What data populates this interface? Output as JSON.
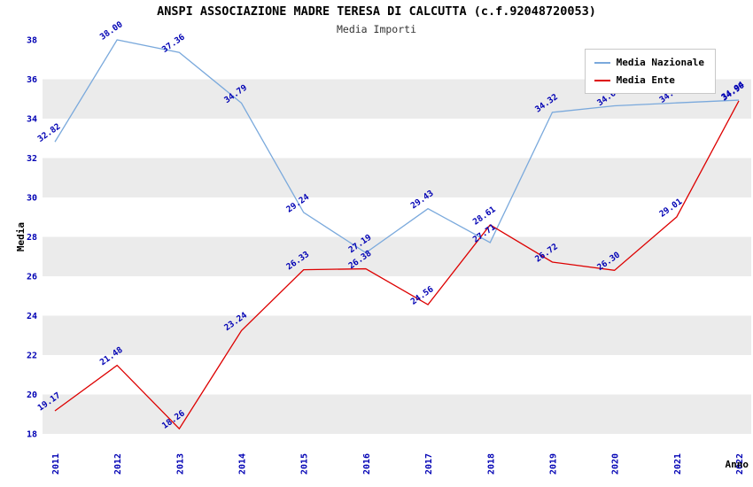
{
  "chart_data": {
    "type": "line",
    "title": "ANSPI ASSOCIAZIONE MADRE TERESA DI CALCUTTA (c.f.92048720053)",
    "subtitle": "Media Importi",
    "xlabel": "Anno",
    "ylabel": "Media",
    "categories": [
      "2011",
      "2012",
      "2013",
      "2014",
      "2015",
      "2016",
      "2017",
      "2018",
      "2019",
      "2020",
      "2021",
      "2022"
    ],
    "series": [
      {
        "name": "Media Nazionale",
        "color": "#7aa9dc",
        "values": [
          32.82,
          38.0,
          37.36,
          34.79,
          29.24,
          27.19,
          29.43,
          27.71,
          34.32,
          34.65,
          34.8,
          34.94
        ]
      },
      {
        "name": "Media Ente",
        "color": "#dd0000",
        "values": [
          19.17,
          21.48,
          18.26,
          23.24,
          26.33,
          26.38,
          24.56,
          28.61,
          26.72,
          26.3,
          29.01,
          34.9
        ]
      }
    ],
    "ylim": [
      18,
      38
    ],
    "ytick_step": 2,
    "band_color": "#ebebeb",
    "plot_background": "#ffffff",
    "tick_label_color": "#0000b4",
    "data_label_color": "#0000b4",
    "grid": false,
    "legend_position": "top-right"
  }
}
